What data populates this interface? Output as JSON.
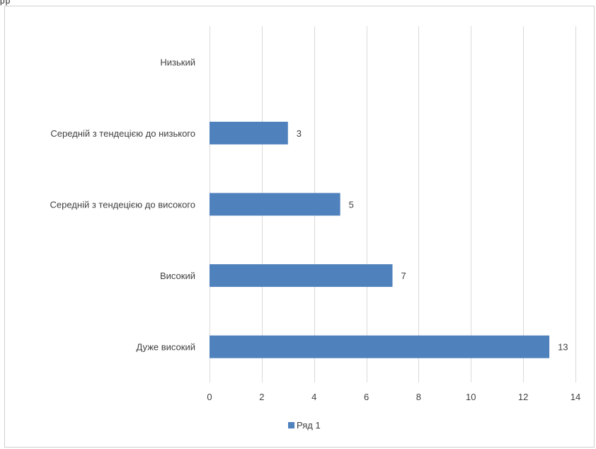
{
  "chart_data": {
    "type": "bar",
    "orientation": "horizontal",
    "title": "",
    "xlabel": "",
    "ylabel": "",
    "categories": [
      "Низький",
      "Середній з тендецією до низького",
      "Середній з тендецією до високого",
      "Високий",
      "Дуже високий"
    ],
    "series": [
      {
        "name": "Ряд 1",
        "values": [
          0,
          3,
          5,
          7,
          13
        ],
        "data_labels": [
          "",
          "3",
          "5",
          "7",
          "13"
        ],
        "color": "#4f81bd"
      }
    ],
    "xlim": [
      0,
      14
    ],
    "x_ticks": [
      0,
      2,
      4,
      6,
      8,
      10,
      12,
      14
    ],
    "x_tick_labels": [
      "0",
      "2",
      "4",
      "6",
      "8",
      "10",
      "12",
      "14"
    ],
    "grid": true,
    "legend_position": "bottom"
  },
  "colors": {
    "bar": "#4f81bd",
    "grid": "#d9d9d9",
    "text": "#404040",
    "frame": "#d0d0d0"
  },
  "header_fragment": "pp"
}
